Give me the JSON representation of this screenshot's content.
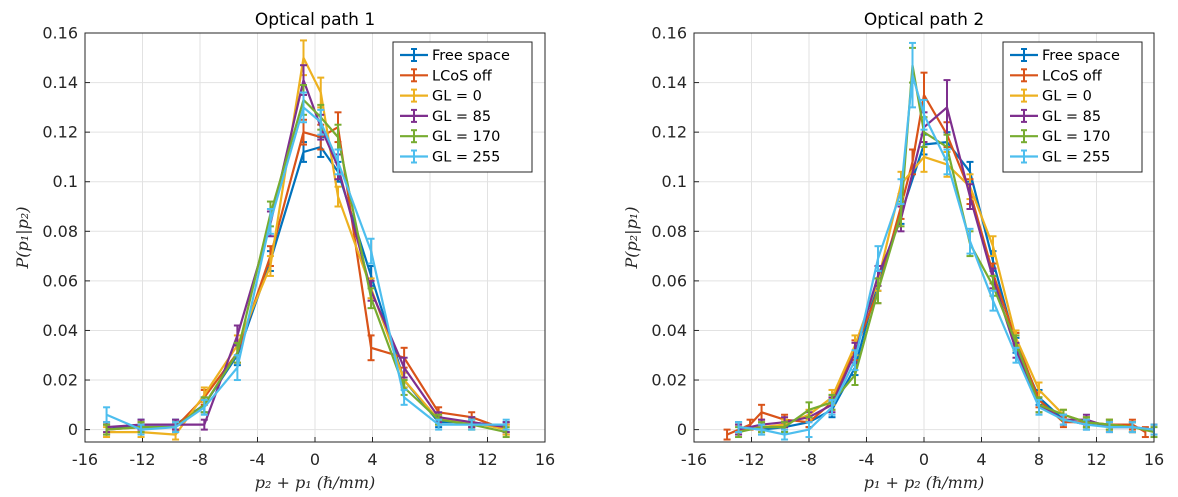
{
  "chart_data": [
    {
      "type": "line",
      "title": "Optical path 1",
      "xlabel": "p₂ + p₁ (ℏ/mm)",
      "ylabel": "P(p₁|p₂)",
      "xlim": [
        -16,
        16
      ],
      "ylim": [
        -0.005,
        0.16
      ],
      "xticks": [
        "-16",
        "-12",
        "-8",
        "-4",
        "0",
        "4",
        "8",
        "12",
        "16"
      ],
      "yticks": [
        "0",
        "0.02",
        "0.04",
        "0.06",
        "0.08",
        "0.1",
        "0.12",
        "0.14",
        "0.16"
      ],
      "grid": true,
      "legend_position": "top-right",
      "series": [
        {
          "name": "Free space",
          "color": "#0072BD",
          "x": [
            -14.5,
            -12.1,
            -9.7,
            -7.7,
            -5.4,
            -3.1,
            -0.8,
            0.4,
            1.6,
            3.9,
            6.2,
            8.6,
            10.9,
            13.3
          ],
          "y": [
            0.0,
            0.002,
            0.002,
            0.01,
            0.03,
            0.068,
            0.112,
            0.114,
            0.104,
            0.062,
            0.02,
            0.003,
            0.003,
            0.001
          ],
          "err": [
            0.002,
            0.002,
            0.002,
            0.003,
            0.004,
            0.004,
            0.004,
            0.004,
            0.004,
            0.004,
            0.003,
            0.002,
            0.002,
            0.002
          ]
        },
        {
          "name": "LCoS off",
          "color": "#D95319",
          "x": [
            -14.5,
            -12.1,
            -9.7,
            -7.7,
            -5.4,
            -3.1,
            -0.8,
            0.4,
            1.6,
            3.9,
            6.2,
            8.6,
            10.9,
            13.3
          ],
          "y": [
            0.0,
            0.001,
            0.001,
            0.013,
            0.031,
            0.07,
            0.12,
            0.118,
            0.122,
            0.033,
            0.029,
            0.007,
            0.005,
            0.0
          ],
          "err": [
            0.002,
            0.002,
            0.002,
            0.003,
            0.004,
            0.004,
            0.005,
            0.005,
            0.006,
            0.005,
            0.004,
            0.002,
            0.002,
            0.002
          ]
        },
        {
          "name": "GL = 0",
          "color": "#EDB120",
          "x": [
            -14.5,
            -12.1,
            -9.7,
            -7.7,
            -5.4,
            -3.1,
            -0.8,
            0.4,
            1.6,
            3.9,
            6.2,
            8.6,
            10.9,
            13.3
          ],
          "y": [
            -0.001,
            -0.001,
            -0.002,
            0.014,
            0.034,
            0.066,
            0.15,
            0.136,
            0.094,
            0.057,
            0.02,
            0.004,
            0.003,
            0.0
          ],
          "err": [
            0.002,
            0.002,
            0.002,
            0.003,
            0.004,
            0.004,
            0.007,
            0.006,
            0.004,
            0.004,
            0.003,
            0.002,
            0.002,
            0.002
          ]
        },
        {
          "name": "GL = 85",
          "color": "#7E2F8E",
          "x": [
            -14.5,
            -12.1,
            -9.7,
            -7.7,
            -5.4,
            -3.1,
            -0.8,
            0.4,
            1.6,
            3.9,
            6.2,
            8.6,
            10.9,
            13.3
          ],
          "y": [
            0.001,
            0.002,
            0.002,
            0.002,
            0.038,
            0.083,
            0.141,
            0.122,
            0.106,
            0.056,
            0.025,
            0.005,
            0.003,
            0.001
          ],
          "err": [
            0.002,
            0.002,
            0.002,
            0.002,
            0.004,
            0.005,
            0.006,
            0.005,
            0.005,
            0.004,
            0.004,
            0.002,
            0.002,
            0.002
          ]
        },
        {
          "name": "GL = 170",
          "color": "#77AC30",
          "x": [
            -14.5,
            -12.1,
            -9.7,
            -7.7,
            -5.4,
            -3.1,
            -0.8,
            0.4,
            1.6,
            3.9,
            6.2,
            8.6,
            10.9,
            13.3
          ],
          "y": [
            0.0,
            0.001,
            0.001,
            0.01,
            0.031,
            0.087,
            0.133,
            0.126,
            0.118,
            0.053,
            0.017,
            0.004,
            0.002,
            -0.001
          ],
          "err": [
            0.002,
            0.002,
            0.002,
            0.003,
            0.004,
            0.005,
            0.006,
            0.005,
            0.005,
            0.004,
            0.003,
            0.002,
            0.002,
            0.002
          ]
        },
        {
          "name": "GL = 255",
          "color": "#4DBEEE",
          "x": [
            -14.5,
            -12.1,
            -9.7,
            -7.7,
            -5.4,
            -3.1,
            -0.8,
            0.4,
            1.6,
            3.9,
            6.2,
            8.6,
            10.9,
            13.3
          ],
          "y": [
            0.006,
            0.0,
            0.001,
            0.009,
            0.025,
            0.084,
            0.13,
            0.124,
            0.108,
            0.072,
            0.013,
            0.002,
            0.002,
            0.002
          ],
          "err": [
            0.003,
            0.002,
            0.002,
            0.003,
            0.005,
            0.005,
            0.006,
            0.005,
            0.005,
            0.005,
            0.003,
            0.002,
            0.002,
            0.002
          ]
        }
      ]
    },
    {
      "type": "line",
      "title": "Optical path 2",
      "xlabel": "p₁ + p₂ (ℏ/mm)",
      "ylabel": "P(p₂|p₁)",
      "xlim": [
        -16,
        16
      ],
      "ylim": [
        -0.005,
        0.16
      ],
      "xticks": [
        "-16",
        "-12",
        "-8",
        "-4",
        "0",
        "4",
        "8",
        "12",
        "16"
      ],
      "yticks": [
        "0",
        "0.02",
        "0.04",
        "0.06",
        "0.08",
        "0.1",
        "0.12",
        "0.14",
        "0.16"
      ],
      "grid": true,
      "legend_position": "top-right",
      "series": [
        {
          "name": "Free space",
          "color": "#0072BD",
          "x": [
            -12.9,
            -11.3,
            -9.7,
            -8.0,
            -6.4,
            -4.8,
            -3.2,
            -1.6,
            0.0,
            1.6,
            3.2,
            4.8,
            6.4,
            8.0,
            9.7,
            11.3,
            12.9,
            14.5
          ],
          "y": [
            0.001,
            0.0,
            0.001,
            0.003,
            0.008,
            0.025,
            0.06,
            0.087,
            0.115,
            0.116,
            0.104,
            0.068,
            0.034,
            0.013,
            0.004,
            0.002,
            0.002,
            0.001
          ],
          "err": [
            0.002,
            0.002,
            0.002,
            0.002,
            0.003,
            0.003,
            0.004,
            0.004,
            0.004,
            0.004,
            0.004,
            0.004,
            0.003,
            0.003,
            0.002,
            0.002,
            0.002,
            0.002
          ]
        },
        {
          "name": "LCoS off",
          "color": "#D95319",
          "x": [
            -13.7,
            -12.1,
            -11.3,
            -9.7,
            -8.0,
            -6.4,
            -4.8,
            -3.2,
            -1.6,
            -0.8,
            0.0,
            1.6,
            3.2,
            4.8,
            6.4,
            8.0,
            9.7,
            11.3,
            12.9,
            14.5,
            15.4
          ],
          "y": [
            -0.002,
            0.002,
            0.007,
            0.004,
            0.003,
            0.011,
            0.032,
            0.056,
            0.09,
            0.108,
            0.135,
            0.119,
            0.096,
            0.063,
            0.036,
            0.012,
            0.003,
            0.003,
            0.002,
            0.002,
            -0.001
          ],
          "err": [
            0.002,
            0.002,
            0.003,
            0.002,
            0.002,
            0.003,
            0.004,
            0.005,
            0.005,
            0.005,
            0.009,
            0.005,
            0.005,
            0.004,
            0.003,
            0.003,
            0.002,
            0.002,
            0.002,
            0.002,
            0.002
          ]
        },
        {
          "name": "GL = 0",
          "color": "#EDB120",
          "x": [
            -12.9,
            -11.3,
            -9.7,
            -8.0,
            -6.4,
            -4.8,
            -3.2,
            -1.6,
            0.0,
            1.6,
            3.2,
            4.8,
            6.4,
            8.0,
            9.7,
            11.3,
            12.9,
            14.5,
            16.0
          ],
          "y": [
            0.0,
            0.001,
            0.002,
            0.006,
            0.013,
            0.034,
            0.06,
            0.099,
            0.11,
            0.107,
            0.098,
            0.074,
            0.037,
            0.016,
            0.006,
            0.003,
            0.002,
            0.001,
            0.0
          ],
          "err": [
            0.002,
            0.002,
            0.002,
            0.002,
            0.003,
            0.004,
            0.004,
            0.005,
            0.006,
            0.005,
            0.005,
            0.004,
            0.003,
            0.003,
            0.002,
            0.002,
            0.002,
            0.002,
            0.002
          ]
        },
        {
          "name": "GL = 85",
          "color": "#7E2F8E",
          "x": [
            -12.9,
            -11.3,
            -9.7,
            -8.0,
            -6.4,
            -4.8,
            -3.2,
            -1.6,
            0.0,
            1.6,
            3.2,
            4.8,
            6.4,
            8.0,
            9.7,
            11.3,
            12.9,
            14.5,
            16.0
          ],
          "y": [
            0.0,
            0.002,
            0.003,
            0.005,
            0.01,
            0.031,
            0.062,
            0.085,
            0.122,
            0.13,
            0.094,
            0.061,
            0.032,
            0.01,
            0.004,
            0.004,
            0.001,
            0.001,
            0.0
          ],
          "err": [
            0.002,
            0.002,
            0.002,
            0.002,
            0.003,
            0.004,
            0.004,
            0.005,
            0.006,
            0.011,
            0.005,
            0.004,
            0.003,
            0.003,
            0.002,
            0.002,
            0.002,
            0.002,
            0.002
          ]
        },
        {
          "name": "GL = 170",
          "color": "#77AC30",
          "x": [
            -12.9,
            -11.3,
            -9.7,
            -8.0,
            -6.4,
            -4.8,
            -3.2,
            -1.6,
            -0.8,
            0.0,
            1.6,
            3.2,
            4.8,
            6.4,
            8.0,
            9.7,
            11.3,
            12.9,
            14.5,
            16.0
          ],
          "y": [
            -0.001,
            0.001,
            0.001,
            0.008,
            0.011,
            0.022,
            0.056,
            0.087,
            0.147,
            0.12,
            0.114,
            0.075,
            0.058,
            0.035,
            0.01,
            0.006,
            0.003,
            0.002,
            0.001,
            -0.001
          ],
          "err": [
            0.002,
            0.002,
            0.002,
            0.003,
            0.003,
            0.004,
            0.005,
            0.005,
            0.007,
            0.006,
            0.005,
            0.005,
            0.004,
            0.003,
            0.003,
            0.002,
            0.002,
            0.002,
            0.002,
            0.002
          ]
        },
        {
          "name": "GL = 255",
          "color": "#4DBEEE",
          "x": [
            -12.9,
            -11.3,
            -9.7,
            -8.0,
            -6.4,
            -4.8,
            -3.2,
            -1.6,
            -0.8,
            0.0,
            1.6,
            3.2,
            4.8,
            6.4,
            8.0,
            9.7,
            11.3,
            12.9,
            14.5,
            16.0
          ],
          "y": [
            0.001,
            0.0,
            -0.002,
            0.0,
            0.009,
            0.028,
            0.069,
            0.096,
            0.143,
            0.127,
            0.108,
            0.076,
            0.052,
            0.03,
            0.009,
            0.004,
            0.002,
            0.001,
            0.001,
            0.0
          ],
          "err": [
            0.002,
            0.002,
            0.002,
            0.003,
            0.003,
            0.004,
            0.005,
            0.005,
            0.013,
            0.006,
            0.005,
            0.005,
            0.004,
            0.003,
            0.003,
            0.002,
            0.002,
            0.002,
            0.002,
            0.002
          ]
        }
      ]
    }
  ]
}
